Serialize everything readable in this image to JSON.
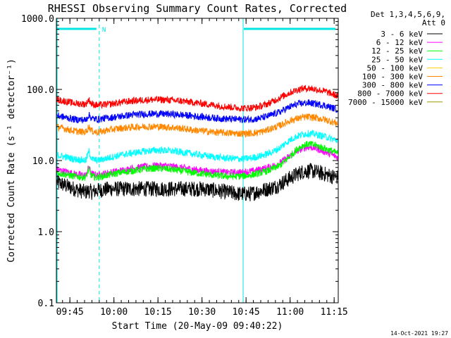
{
  "chart_data": {
    "type": "line",
    "title": "RHESSI Observing Summary Count Rates, Corrected",
    "xlabel": "Start Time (20-May-09 09:40:22)",
    "ylabel": "Corrected Count Rate (s⁻¹ detector⁻¹)",
    "y_scale": "log",
    "ylim": [
      0.1,
      1000.0
    ],
    "y_ticks": [
      "1000.0",
      "100.0",
      "10.0",
      "1.0",
      "0.1"
    ],
    "y_tick_values": [
      1000,
      100,
      10,
      1,
      0.1
    ],
    "xlim_minutes": [
      0,
      96
    ],
    "x_ticks": [
      "09:45",
      "10:00",
      "10:15",
      "10:30",
      "10:45",
      "11:00",
      "11:15"
    ],
    "x_tick_minutes": [
      4.6,
      19.6,
      34.6,
      49.6,
      64.6,
      79.6,
      94.6
    ],
    "legend_header": [
      "Det 1,3,4,5,6,9,",
      "Att 0"
    ],
    "legend_position": "right",
    "timestamp": "14-Oct-2021 19:27",
    "annotation_n": "N",
    "night_intervals_minutes": [
      [
        0,
        14.6
      ],
      [
        63.6,
        96
      ]
    ],
    "night_marker_color": "#00e5e5",
    "night_marker_dashed_at_minutes": [
      14.6,
      63.6
    ],
    "night_marker_solid_at_minutes": [
      0,
      63.6
    ],
    "sample_times_minutes": [
      0,
      6,
      10,
      11,
      12,
      14,
      18,
      22,
      26,
      30,
      34,
      38,
      42,
      46,
      50,
      54,
      58,
      62,
      64,
      66,
      68,
      70,
      72,
      74,
      76,
      78,
      80,
      82,
      84,
      86,
      88,
      91,
      94,
      96
    ],
    "series": [
      {
        "name": "3 - 6 keV",
        "color": "#000000",
        "values": [
          5.0,
          4.0,
          3.6,
          3.8,
          3.6,
          3.8,
          4.0,
          4.0,
          4.0,
          4.0,
          4.0,
          4.0,
          4.0,
          4.0,
          4.0,
          3.8,
          3.6,
          3.4,
          3.4,
          3.4,
          3.6,
          3.8,
          4.0,
          4.2,
          4.6,
          5.2,
          5.8,
          6.5,
          7.0,
          7.2,
          7.0,
          6.5,
          6.0,
          5.8
        ]
      },
      {
        "name": "6 - 12 keV",
        "color": "#ff00ff",
        "values": [
          7.5,
          6.5,
          6.2,
          8.0,
          6.5,
          6.2,
          6.8,
          7.2,
          7.8,
          8.2,
          8.5,
          8.4,
          8.0,
          7.6,
          7.2,
          7.0,
          6.8,
          6.8,
          6.9,
          7.0,
          7.3,
          7.6,
          8.0,
          8.5,
          9.2,
          10.5,
          12.0,
          13.5,
          15.0,
          15.5,
          15.0,
          13.5,
          12.0,
          11.0
        ]
      },
      {
        "name": "12 - 25 keV",
        "color": "#00ff00",
        "values": [
          6.8,
          6.0,
          5.8,
          7.5,
          6.0,
          5.8,
          6.3,
          6.8,
          7.2,
          7.6,
          7.8,
          7.6,
          7.2,
          6.8,
          6.5,
          6.2,
          6.0,
          6.0,
          6.1,
          6.2,
          6.5,
          6.8,
          7.2,
          7.8,
          8.5,
          10.0,
          12.0,
          14.5,
          16.5,
          17.0,
          16.5,
          15.0,
          13.5,
          12.5
        ]
      },
      {
        "name": "25 - 50 keV",
        "color": "#00ffff",
        "values": [
          12.0,
          10.5,
          10.0,
          13.5,
          10.5,
          10.0,
          11.0,
          12.0,
          12.8,
          13.5,
          14.0,
          13.8,
          13.2,
          12.5,
          11.8,
          11.2,
          10.8,
          10.6,
          10.6,
          10.8,
          11.2,
          11.8,
          12.5,
          13.5,
          15.0,
          17.5,
          20.0,
          22.0,
          23.5,
          24.0,
          23.5,
          22.0,
          20.0,
          19.0
        ]
      },
      {
        "name": "50 - 100 keV",
        "color": "#ffcc00",
        "values": []
      },
      {
        "name": "100 - 300 keV",
        "color": "#ff8800",
        "values": [
          30.0,
          26.0,
          25.0,
          30.0,
          26.0,
          25.0,
          27.0,
          28.5,
          29.5,
          30.0,
          30.0,
          29.5,
          28.5,
          27.0,
          26.0,
          25.0,
          24.5,
          24.0,
          24.0,
          24.2,
          24.6,
          25.5,
          27.0,
          29.0,
          31.0,
          34.0,
          37.0,
          39.0,
          40.5,
          41.0,
          40.0,
          38.0,
          35.0,
          33.0
        ]
      },
      {
        "name": "300 - 800 keV",
        "color": "#0000ff",
        "values": [
          43.0,
          38.0,
          37.0,
          44.0,
          39.0,
          38.0,
          40.0,
          42.0,
          44.0,
          45.0,
          45.5,
          45.0,
          44.0,
          42.5,
          41.0,
          39.5,
          38.5,
          38.0,
          37.8,
          38.0,
          38.5,
          40.0,
          42.0,
          45.0,
          48.0,
          53.0,
          58.0,
          62.0,
          64.0,
          64.5,
          63.0,
          60.0,
          55.0,
          52.0
        ]
      },
      {
        "name": "800 - 7000 keV",
        "color": "#ff0000",
        "values": [
          72.0,
          64.0,
          62.0,
          72.0,
          62.0,
          60.0,
          62.0,
          66.0,
          69.0,
          71.0,
          72.0,
          71.0,
          69.0,
          66.0,
          63.0,
          60.0,
          57.0,
          55.0,
          54.5,
          55.0,
          56.0,
          59.0,
          63.0,
          69.0,
          76.0,
          84.0,
          92.0,
          99.0,
          103.0,
          104.0,
          101.0,
          95.0,
          86.0,
          80.0
        ]
      },
      {
        "name": "7000 - 15000 keV",
        "color": "#999900",
        "values": []
      }
    ]
  }
}
